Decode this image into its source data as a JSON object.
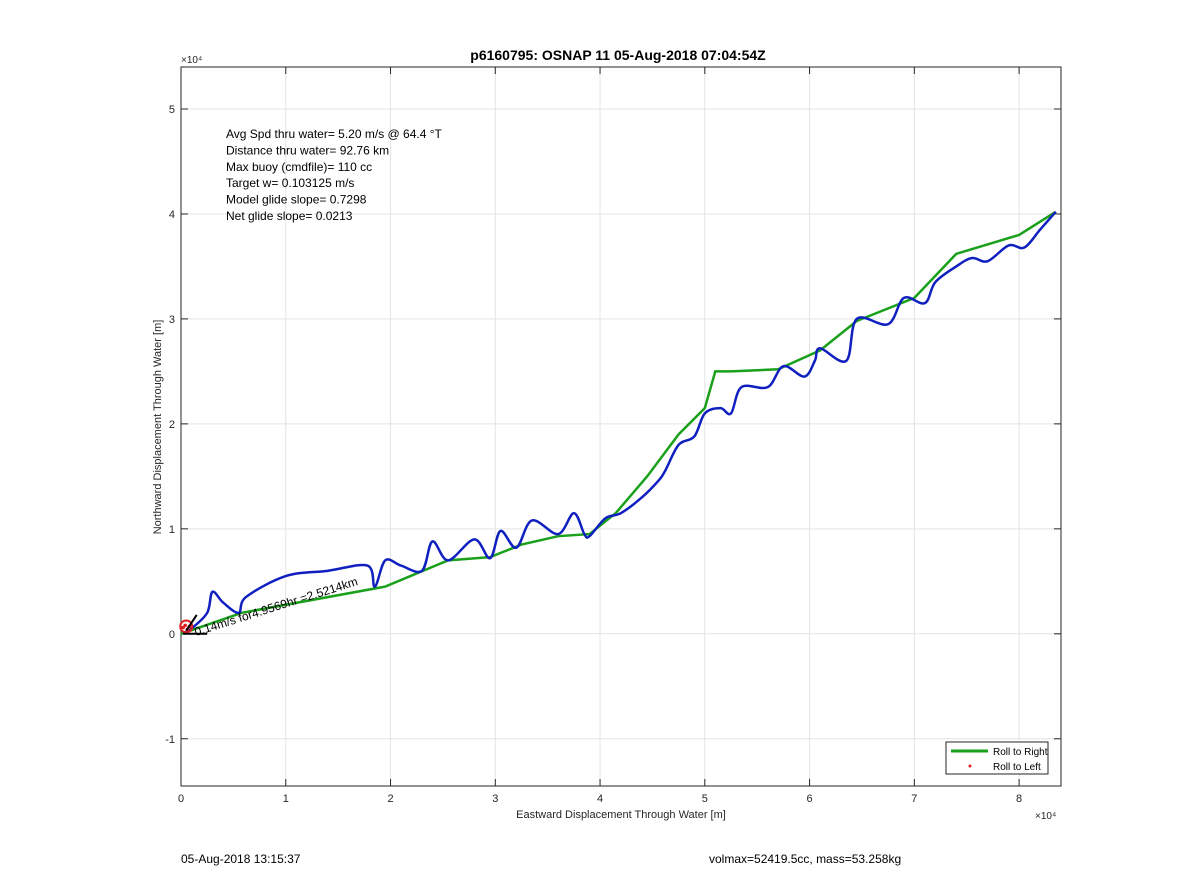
{
  "chart_data": {
    "type": "line",
    "title": "p6160795: OSNAP 11 05-Aug-2018 07:04:54Z",
    "xlabel": "Eastward Displacement Through Water [m]",
    "ylabel": "Northward Displacement Through Water [m]",
    "x_multiplier_label": "×10⁴",
    "y_multiplier_label": "×10⁴",
    "xlim": [
      0,
      8.4
    ],
    "ylim": [
      -1.45,
      5.4
    ],
    "x_ticks": [
      0,
      1,
      2,
      3,
      4,
      5,
      6,
      7,
      8
    ],
    "y_ticks": [
      -1,
      0,
      1,
      2,
      3,
      4,
      5
    ],
    "x_tick_labels": [
      "0",
      "1",
      "2",
      "3",
      "4",
      "5",
      "6",
      "7",
      "8"
    ],
    "y_tick_labels": [
      "-1",
      "0",
      "1",
      "2",
      "3",
      "4",
      "5"
    ],
    "grid": true,
    "legend_position": "bottom-right",
    "series": [
      {
        "name": "Roll to Right",
        "color": "#1aa01a",
        "values_x": [
          0.0,
          0.58,
          1.95,
          2.55,
          2.95,
          3.25,
          3.6,
          3.9,
          4.15,
          4.45,
          4.75,
          5.0,
          5.1,
          5.25,
          5.7,
          6.1,
          6.45,
          7.0,
          7.4,
          8.0,
          8.35
        ],
        "values_y": [
          0.0,
          0.2,
          0.45,
          0.7,
          0.73,
          0.85,
          0.93,
          0.95,
          1.15,
          1.5,
          1.9,
          2.15,
          2.5,
          2.5,
          2.52,
          2.7,
          2.98,
          3.2,
          3.62,
          3.8,
          4.02
        ]
      },
      {
        "name": "Roll to Left",
        "color": "#e02020",
        "values_x": [
          0.02,
          0.04,
          0.06,
          0.08
        ],
        "values_y": [
          0.06,
          0.08,
          0.04,
          0.07
        ]
      },
      {
        "name": "",
        "color": "#1020c0",
        "values_x": [
          0.02,
          0.1,
          0.25,
          0.3,
          0.4,
          0.55,
          0.62,
          1.0,
          1.4,
          1.78,
          1.85,
          1.95,
          2.1,
          2.3,
          2.4,
          2.55,
          2.8,
          2.95,
          3.05,
          3.2,
          3.35,
          3.6,
          3.75,
          3.85,
          3.9,
          4.05,
          4.2,
          4.4,
          4.55,
          4.62,
          4.75,
          4.9,
          5.0,
          5.15,
          5.25,
          5.35,
          5.6,
          5.75,
          5.95,
          6.05,
          6.1,
          6.35,
          6.45,
          6.75,
          6.9,
          7.1,
          7.2,
          7.4,
          7.55,
          7.7,
          7.9,
          8.05,
          8.2,
          8.35
        ],
        "values_y": [
          0.0,
          0.05,
          0.2,
          0.4,
          0.3,
          0.2,
          0.35,
          0.55,
          0.6,
          0.65,
          0.45,
          0.7,
          0.65,
          0.6,
          0.88,
          0.7,
          0.9,
          0.72,
          0.98,
          0.82,
          1.08,
          0.95,
          1.15,
          0.95,
          0.93,
          1.1,
          1.15,
          1.3,
          1.45,
          1.55,
          1.8,
          1.88,
          2.1,
          2.15,
          2.1,
          2.35,
          2.35,
          2.55,
          2.45,
          2.6,
          2.72,
          2.6,
          3.0,
          2.95,
          3.2,
          3.15,
          3.35,
          3.5,
          3.58,
          3.55,
          3.7,
          3.68,
          3.85,
          4.02
        ]
      }
    ],
    "annotations": [
      "Avg Spd thru water=  5.20 m/s @  64.4 °T",
      "Distance thru water= 92.76 km",
      "Max buoy (cmdfile)= 110 cc",
      "Target w= 0.103125 m/s",
      "Model glide slope= 0.7298",
      "Net glide slope= 0.0213"
    ],
    "current_label": "0.14m/s for4.9569hr =2.5214km"
  },
  "footer": {
    "left": "05-Aug-2018 13:15:37",
    "right": "volmax=52419.5cc, mass=53.258kg"
  }
}
